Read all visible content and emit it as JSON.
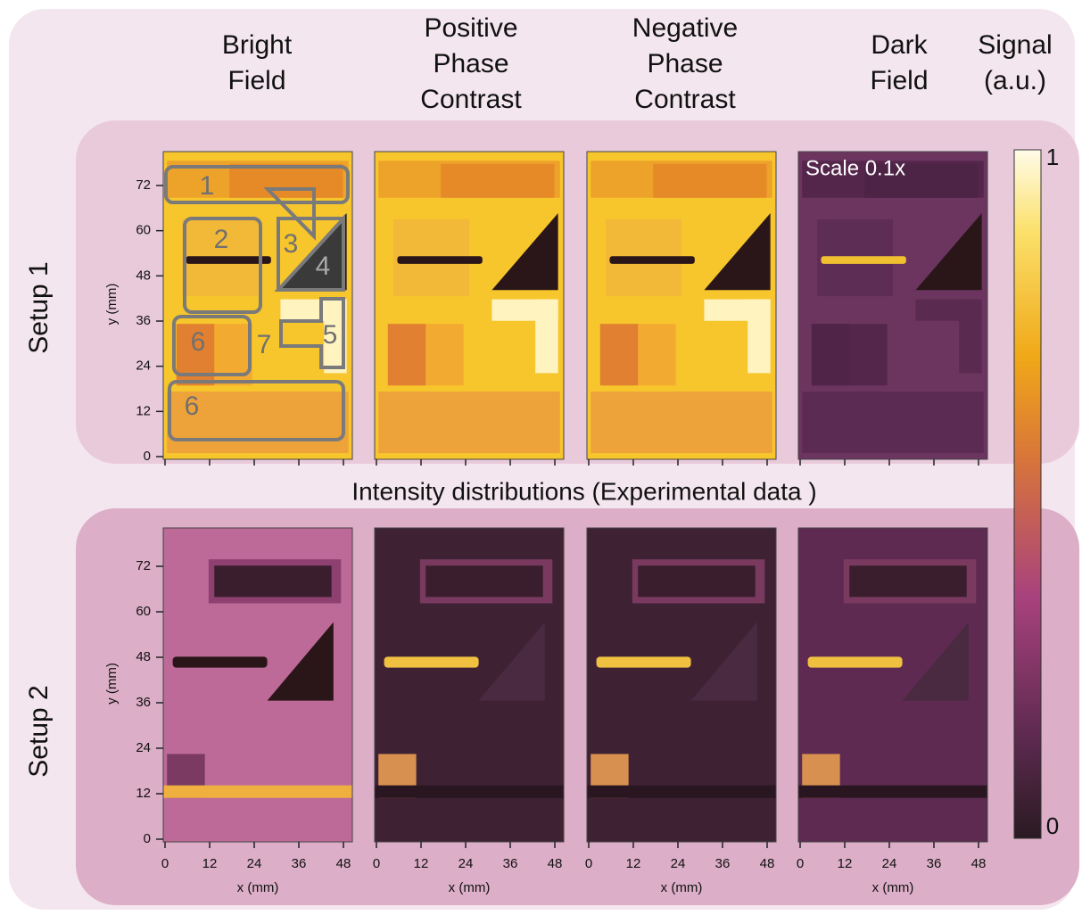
{
  "column_headers": [
    [
      "Bright",
      "Field"
    ],
    [
      "Positive",
      "Phase",
      "Contrast"
    ],
    [
      "Negative",
      "Phase",
      "Contrast"
    ],
    [
      "Dark",
      "Field"
    ]
  ],
  "colorbar": {
    "title": [
      "Signal",
      "(a.u.)"
    ],
    "max_label": "1",
    "min_label": "0"
  },
  "rows": [
    {
      "label": "Setup 1"
    },
    {
      "label": "Setup 2"
    }
  ],
  "y_axis_label": "y (mm)",
  "yticks": [
    0,
    12,
    24,
    36,
    48,
    60,
    72
  ],
  "x_axis_label": "x (mm)",
  "xticks": [
    0,
    12,
    24,
    36,
    48
  ],
  "middle_caption": "Intensity distributions (Experimental data )",
  "dark_field_note": "Scale 0.1x",
  "region_labels": [
    "1",
    "2",
    "3",
    "4",
    "5",
    "6",
    "7",
    "6"
  ]
}
